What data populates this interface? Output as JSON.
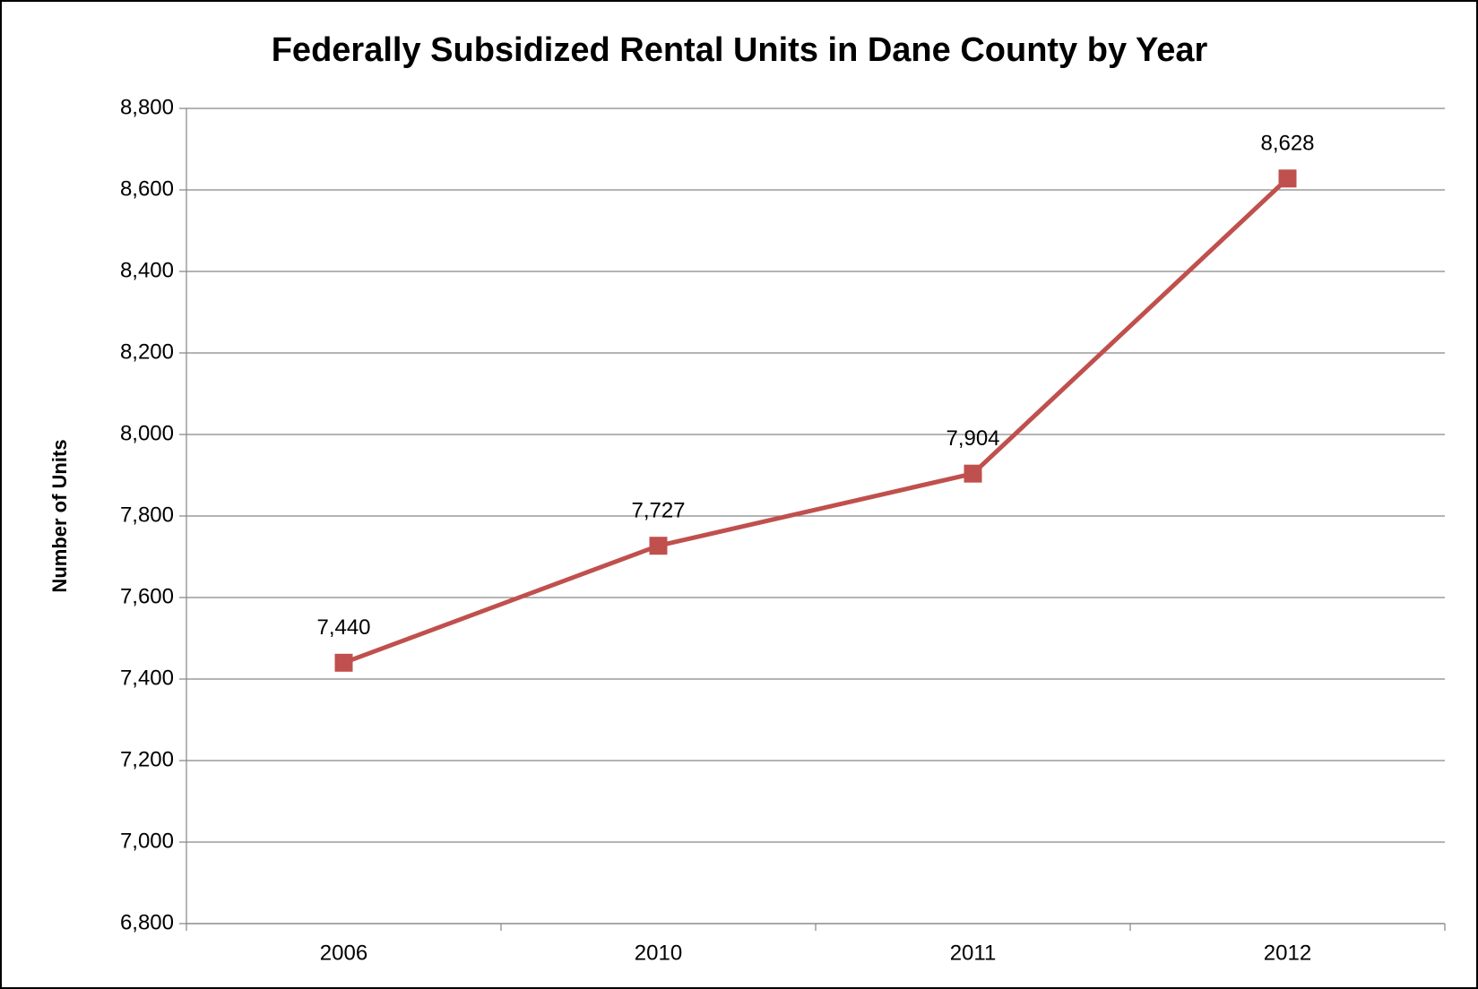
{
  "chart_data": {
    "type": "line",
    "title": "Federally Subsidized Rental Units in Dane County by Year",
    "y_label": "Number of Units",
    "categories": [
      "2006",
      "2010",
      "2011",
      "2012"
    ],
    "series": [
      {
        "name": "Units",
        "color": "#c0504d",
        "values": [
          7440,
          7727,
          7904,
          8628
        ],
        "value_labels": [
          "7,440",
          "7,727",
          "7,904",
          "8,628"
        ]
      }
    ],
    "ylim": [
      6800,
      8800
    ],
    "yticks": [
      {
        "value": 6800,
        "label": "6,800"
      },
      {
        "value": 7000,
        "label": "7,000"
      },
      {
        "value": 7200,
        "label": "7,200"
      },
      {
        "value": 7400,
        "label": "7,400"
      },
      {
        "value": 7600,
        "label": "7,600"
      },
      {
        "value": 7800,
        "label": "7,800"
      },
      {
        "value": 8000,
        "label": "8,000"
      },
      {
        "value": 8200,
        "label": "8,200"
      },
      {
        "value": 8400,
        "label": "8,400"
      },
      {
        "value": 8600,
        "label": "8,600"
      },
      {
        "value": 8800,
        "label": "8,800"
      }
    ],
    "grid": true,
    "legend": false
  }
}
